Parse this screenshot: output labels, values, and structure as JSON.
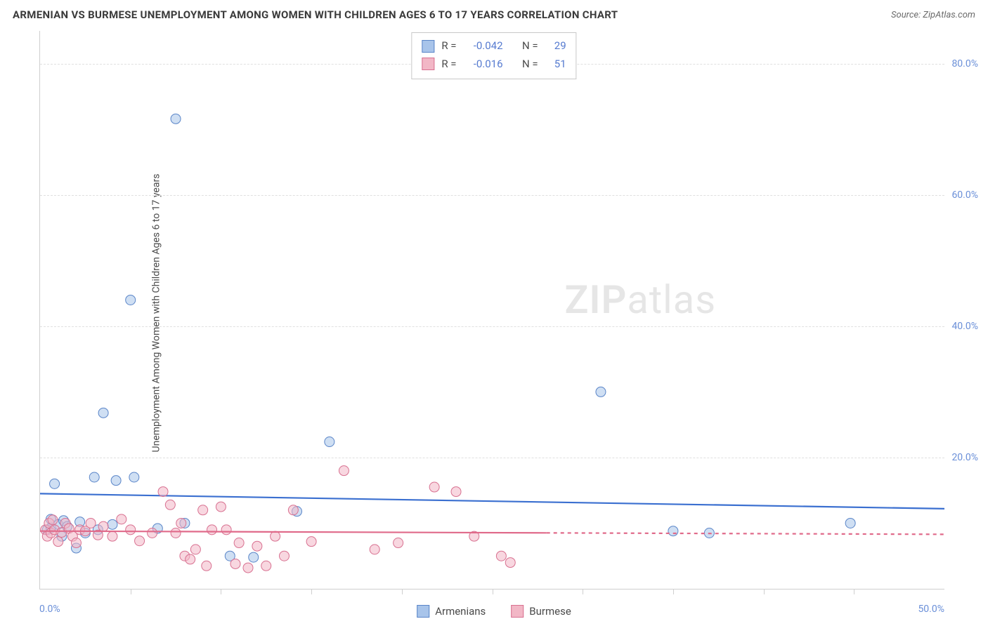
{
  "header": {
    "title": "ARMENIAN VS BURMESE UNEMPLOYMENT AMONG WOMEN WITH CHILDREN AGES 6 TO 17 YEARS CORRELATION CHART",
    "source": "Source: ZipAtlas.com"
  },
  "yaxis": {
    "title": "Unemployment Among Women with Children Ages 6 to 17 years"
  },
  "watermark": {
    "left": "ZIP",
    "right": "atlas"
  },
  "chart": {
    "type": "scatter",
    "xlim": [
      0,
      50
    ],
    "ylim": [
      0,
      85
    ],
    "x_origin_label": "0.0%",
    "x_max_label": "50.0%",
    "y_ticks": [
      {
        "value": 20,
        "label": "20.0%"
      },
      {
        "value": 40,
        "label": "40.0%"
      },
      {
        "value": 60,
        "label": "60.0%"
      },
      {
        "value": 80,
        "label": "80.0%"
      }
    ],
    "x_tick_positions": [
      5,
      10,
      15,
      20,
      25,
      30,
      35,
      40,
      45
    ],
    "grid_color": "#e0e0e0",
    "axis_color": "#cfcfcf",
    "background_color": "#ffffff",
    "marker_radius": 7,
    "marker_opacity": 0.55,
    "line_width": 2.2,
    "series": [
      {
        "name": "Armenians",
        "color_fill": "#a8c4ea",
        "color_stroke": "#5a85c8",
        "line_color": "#3a6fd0",
        "trend": {
          "y_at_x0": 14.5,
          "y_at_xmax": 12.2,
          "dash_from_x": null
        },
        "stats": {
          "R": "-0.042",
          "N": "29"
        },
        "points": [
          [
            0.4,
            9.0
          ],
          [
            0.6,
            9.3
          ],
          [
            0.6,
            10.6
          ],
          [
            0.8,
            16.0
          ],
          [
            1.0,
            9.8
          ],
          [
            1.2,
            8.0
          ],
          [
            1.3,
            10.4
          ],
          [
            1.5,
            9.5
          ],
          [
            2.0,
            6.2
          ],
          [
            2.2,
            10.2
          ],
          [
            2.5,
            8.5
          ],
          [
            3.0,
            17.0
          ],
          [
            3.2,
            9.0
          ],
          [
            3.5,
            26.8
          ],
          [
            4.0,
            9.8
          ],
          [
            4.2,
            16.5
          ],
          [
            5.2,
            17.0
          ],
          [
            5.0,
            44.0
          ],
          [
            6.5,
            9.2
          ],
          [
            7.5,
            71.6
          ],
          [
            8.0,
            10.0
          ],
          [
            10.5,
            5.0
          ],
          [
            11.8,
            4.8
          ],
          [
            14.2,
            11.8
          ],
          [
            16.0,
            22.4
          ],
          [
            31.0,
            30.0
          ],
          [
            35.0,
            8.8
          ],
          [
            37.0,
            8.5
          ],
          [
            44.8,
            10.0
          ]
        ]
      },
      {
        "name": "Burmese",
        "color_fill": "#f2b7c6",
        "color_stroke": "#d87090",
        "line_color": "#e06a8a",
        "trend": {
          "y_at_x0": 8.8,
          "y_at_xmax": 8.3,
          "dash_from_x": 28
        },
        "stats": {
          "R": "-0.016",
          "N": "51"
        },
        "points": [
          [
            0.3,
            9.0
          ],
          [
            0.4,
            8.0
          ],
          [
            0.5,
            10.0
          ],
          [
            0.6,
            8.5
          ],
          [
            0.7,
            10.5
          ],
          [
            0.8,
            9.0
          ],
          [
            1.0,
            7.2
          ],
          [
            1.2,
            8.6
          ],
          [
            1.4,
            10.0
          ],
          [
            1.6,
            9.2
          ],
          [
            1.8,
            8.0
          ],
          [
            2.0,
            7.0
          ],
          [
            2.2,
            9.0
          ],
          [
            2.5,
            8.8
          ],
          [
            2.8,
            10.0
          ],
          [
            3.2,
            8.2
          ],
          [
            3.5,
            9.5
          ],
          [
            4.0,
            8.0
          ],
          [
            4.5,
            10.6
          ],
          [
            5.0,
            9.0
          ],
          [
            5.5,
            7.3
          ],
          [
            6.2,
            8.5
          ],
          [
            6.8,
            14.8
          ],
          [
            7.2,
            12.8
          ],
          [
            7.5,
            8.5
          ],
          [
            7.8,
            10.0
          ],
          [
            8.0,
            5.0
          ],
          [
            8.3,
            4.5
          ],
          [
            8.6,
            6.0
          ],
          [
            9.0,
            12.0
          ],
          [
            9.2,
            3.5
          ],
          [
            9.5,
            9.0
          ],
          [
            10.0,
            12.5
          ],
          [
            10.3,
            9.0
          ],
          [
            10.8,
            3.8
          ],
          [
            11.0,
            7.0
          ],
          [
            11.5,
            3.2
          ],
          [
            12.0,
            6.5
          ],
          [
            12.5,
            3.5
          ],
          [
            13.0,
            8.0
          ],
          [
            13.5,
            5.0
          ],
          [
            14.0,
            12.0
          ],
          [
            15.0,
            7.2
          ],
          [
            16.8,
            18.0
          ],
          [
            18.5,
            6.0
          ],
          [
            19.8,
            7.0
          ],
          [
            21.8,
            15.5
          ],
          [
            23.0,
            14.8
          ],
          [
            24.0,
            8.0
          ],
          [
            25.5,
            5.0
          ],
          [
            26.0,
            4.0
          ]
        ]
      }
    ]
  },
  "stats_legend": {
    "rows": [
      {
        "series_idx": 0,
        "r_label": "R =",
        "n_label": "N ="
      },
      {
        "series_idx": 1,
        "r_label": "R =",
        "n_label": "N ="
      }
    ]
  },
  "bottom_legend": [
    {
      "series_idx": 0
    },
    {
      "series_idx": 1
    }
  ]
}
